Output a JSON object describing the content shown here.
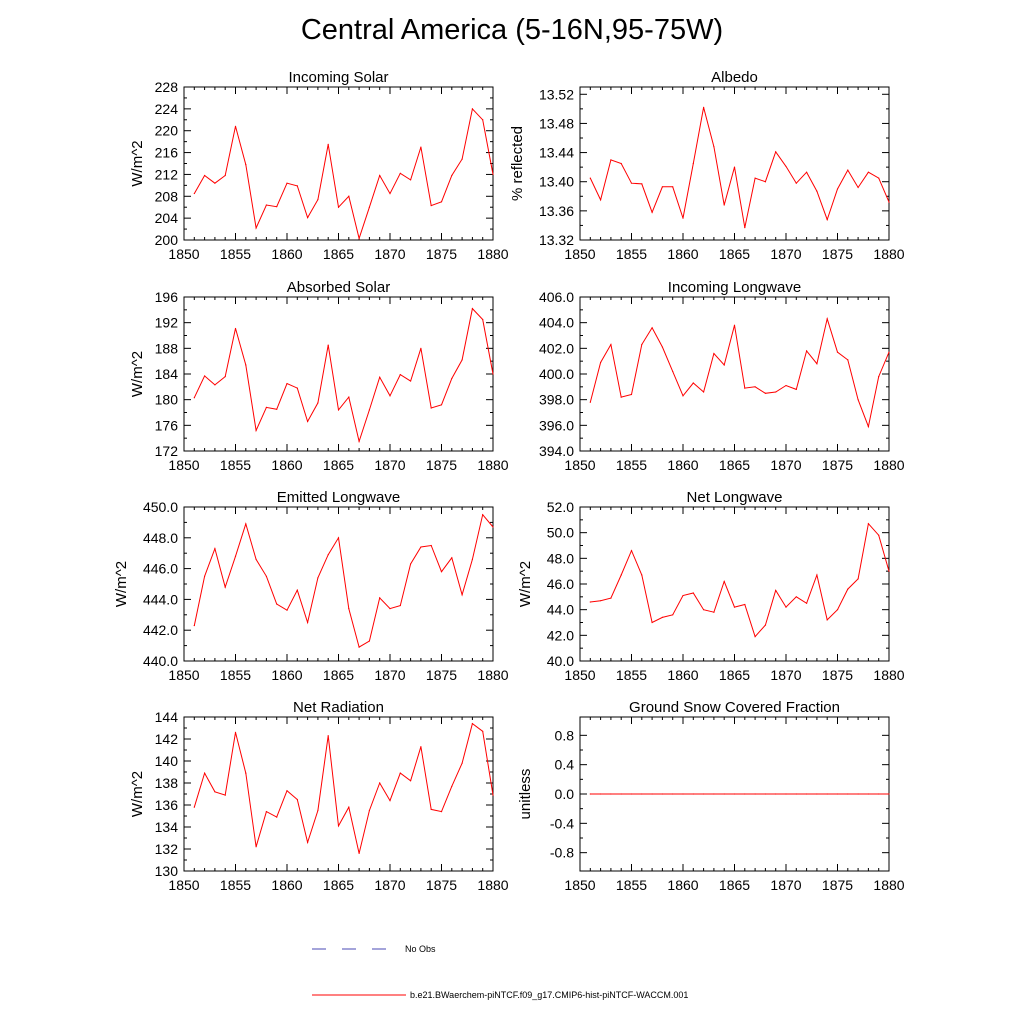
{
  "page": {
    "title": "Central America (5-16N,95-75W)"
  },
  "chart_data": [
    {
      "type": "line",
      "title": "Incoming Solar",
      "ylabel": "W/m^2",
      "xlim": [
        1850,
        1880
      ],
      "ylim": [
        200,
        228
      ],
      "xticks": [
        "1850",
        "1855",
        "1860",
        "1865",
        "1870",
        "1875",
        "1880"
      ],
      "yticks": [
        "200",
        "204",
        "208",
        "212",
        "216",
        "220",
        "224",
        "228"
      ],
      "x": [
        1851,
        1852,
        1853,
        1854,
        1855,
        1856,
        1857,
        1858,
        1859,
        1860,
        1861,
        1862,
        1863,
        1864,
        1865,
        1866,
        1867,
        1868,
        1869,
        1870,
        1871,
        1872,
        1873,
        1874,
        1875,
        1876,
        1877,
        1878,
        1879,
        1880
      ],
      "series": [
        {
          "color": "#ff0000",
          "values": [
            208.5,
            211.8,
            210.4,
            211.8,
            220.8,
            213.8,
            202.2,
            206.4,
            206.1,
            210.4,
            209.9,
            204.1,
            207.4,
            217.5,
            206.0,
            208.0,
            200.3,
            206.0,
            211.8,
            208.5,
            212.2,
            211.0,
            217.0,
            206.3,
            207.0,
            211.8,
            214.8,
            224.0,
            222.0,
            212.0
          ]
        }
      ]
    },
    {
      "type": "line",
      "title": "Albedo",
      "ylabel": "% reflected",
      "xlim": [
        1850,
        1880
      ],
      "ylim": [
        13.32,
        13.53
      ],
      "xticks": [
        "1850",
        "1855",
        "1860",
        "1865",
        "1870",
        "1875",
        "1880"
      ],
      "yticks": [
        "13.32",
        "13.36",
        "13.40",
        "13.44",
        "13.48",
        "13.52"
      ],
      "x": [
        1851,
        1852,
        1853,
        1854,
        1855,
        1856,
        1857,
        1858,
        1859,
        1860,
        1861,
        1862,
        1863,
        1864,
        1865,
        1866,
        1867,
        1868,
        1869,
        1870,
        1871,
        1872,
        1873,
        1874,
        1875,
        1876,
        1877,
        1878,
        1879,
        1880
      ],
      "series": [
        {
          "color": "#ff0000",
          "values": [
            13.405,
            13.375,
            13.43,
            13.425,
            13.398,
            13.397,
            13.358,
            13.393,
            13.393,
            13.35,
            13.425,
            13.502,
            13.448,
            13.368,
            13.42,
            13.337,
            13.405,
            13.4,
            13.441,
            13.421,
            13.398,
            13.413,
            13.387,
            13.348,
            13.39,
            13.416,
            13.392,
            13.413,
            13.405,
            13.372
          ]
        }
      ]
    },
    {
      "type": "line",
      "title": "Absorbed Solar",
      "ylabel": "W/m^2",
      "xlim": [
        1850,
        1880
      ],
      "ylim": [
        172,
        196
      ],
      "xticks": [
        "1850",
        "1855",
        "1860",
        "1865",
        "1870",
        "1875",
        "1880"
      ],
      "yticks": [
        "172",
        "176",
        "180",
        "184",
        "188",
        "192",
        "196"
      ],
      "x": [
        1851,
        1852,
        1853,
        1854,
        1855,
        1856,
        1857,
        1858,
        1859,
        1860,
        1861,
        1862,
        1863,
        1864,
        1865,
        1866,
        1867,
        1868,
        1869,
        1870,
        1871,
        1872,
        1873,
        1874,
        1875,
        1876,
        1877,
        1878,
        1879,
        1880
      ],
      "series": [
        {
          "color": "#ff0000",
          "values": [
            180.3,
            183.7,
            182.3,
            183.6,
            191.1,
            185.4,
            175.2,
            178.8,
            178.5,
            182.5,
            181.8,
            176.6,
            179.5,
            188.5,
            178.4,
            180.4,
            173.5,
            178.4,
            183.5,
            180.6,
            183.9,
            182.9,
            188.0,
            178.7,
            179.2,
            183.3,
            186.2,
            194.2,
            192.5,
            184.0
          ]
        }
      ]
    },
    {
      "type": "line",
      "title": "Incoming Longwave",
      "ylabel": "",
      "xlim": [
        1850,
        1880
      ],
      "ylim": [
        394,
        406
      ],
      "xticks": [
        "1850",
        "1855",
        "1860",
        "1865",
        "1870",
        "1875",
        "1880"
      ],
      "yticks": [
        "394.0",
        "396.0",
        "398.0",
        "400.0",
        "402.0",
        "404.0",
        "406.0"
      ],
      "x": [
        1851,
        1852,
        1853,
        1854,
        1855,
        1856,
        1857,
        1858,
        1859,
        1860,
        1861,
        1862,
        1863,
        1864,
        1865,
        1866,
        1867,
        1868,
        1869,
        1870,
        1871,
        1872,
        1873,
        1874,
        1875,
        1876,
        1877,
        1878,
        1879,
        1880
      ],
      "series": [
        {
          "color": "#ff0000",
          "values": [
            397.8,
            400.9,
            402.3,
            398.2,
            398.4,
            402.3,
            403.6,
            402.1,
            400.2,
            398.3,
            399.3,
            398.6,
            401.6,
            400.7,
            403.8,
            398.9,
            399.0,
            398.5,
            398.6,
            399.1,
            398.8,
            401.8,
            400.8,
            404.3,
            401.7,
            401.1,
            398.0,
            395.9,
            399.8,
            401.7
          ]
        }
      ]
    },
    {
      "type": "line",
      "title": "Emitted Longwave",
      "ylabel": "W/m^2",
      "xlim": [
        1850,
        1880
      ],
      "ylim": [
        440,
        450
      ],
      "xticks": [
        "1850",
        "1855",
        "1860",
        "1865",
        "1870",
        "1875",
        "1880"
      ],
      "yticks": [
        "440.0",
        "442.0",
        "444.0",
        "446.0",
        "448.0",
        "450.0"
      ],
      "x": [
        1851,
        1852,
        1853,
        1854,
        1855,
        1856,
        1857,
        1858,
        1859,
        1860,
        1861,
        1862,
        1863,
        1864,
        1865,
        1866,
        1867,
        1868,
        1869,
        1870,
        1871,
        1872,
        1873,
        1874,
        1875,
        1876,
        1877,
        1878,
        1879,
        1880
      ],
      "series": [
        {
          "color": "#ff0000",
          "values": [
            442.3,
            445.5,
            447.3,
            444.8,
            446.8,
            448.9,
            446.6,
            445.5,
            443.7,
            443.3,
            444.6,
            442.5,
            445.4,
            446.9,
            448.0,
            443.4,
            440.9,
            441.3,
            444.1,
            443.4,
            443.6,
            446.3,
            447.4,
            447.5,
            445.8,
            446.7,
            444.3,
            446.6,
            449.5,
            448.7
          ]
        }
      ]
    },
    {
      "type": "line",
      "title": "Net Longwave",
      "ylabel": "W/m^2",
      "xlim": [
        1850,
        1880
      ],
      "ylim": [
        40,
        52
      ],
      "xticks": [
        "1850",
        "1855",
        "1860",
        "1865",
        "1870",
        "1875",
        "1880"
      ],
      "yticks": [
        "40.0",
        "42.0",
        "44.0",
        "46.0",
        "48.0",
        "50.0",
        "52.0"
      ],
      "x": [
        1851,
        1852,
        1853,
        1854,
        1855,
        1856,
        1857,
        1858,
        1859,
        1860,
        1861,
        1862,
        1863,
        1864,
        1865,
        1866,
        1867,
        1868,
        1869,
        1870,
        1871,
        1872,
        1873,
        1874,
        1875,
        1876,
        1877,
        1878,
        1879,
        1880
      ],
      "series": [
        {
          "color": "#ff0000",
          "values": [
            44.6,
            44.7,
            44.9,
            46.7,
            48.6,
            46.7,
            43.0,
            43.4,
            43.6,
            45.1,
            45.3,
            44.0,
            43.8,
            46.2,
            44.2,
            44.4,
            41.9,
            42.8,
            45.5,
            44.2,
            45.0,
            44.5,
            46.7,
            43.2,
            44.0,
            45.6,
            46.4,
            50.7,
            49.8,
            47.0
          ]
        }
      ]
    },
    {
      "type": "line",
      "title": "Net Radiation",
      "ylabel": "W/m^2",
      "xlim": [
        1850,
        1880
      ],
      "ylim": [
        130,
        144
      ],
      "xticks": [
        "1850",
        "1855",
        "1860",
        "1865",
        "1870",
        "1875",
        "1880"
      ],
      "yticks": [
        "130",
        "132",
        "134",
        "136",
        "138",
        "140",
        "142",
        "144"
      ],
      "x": [
        1851,
        1852,
        1853,
        1854,
        1855,
        1856,
        1857,
        1858,
        1859,
        1860,
        1861,
        1862,
        1863,
        1864,
        1865,
        1866,
        1867,
        1868,
        1869,
        1870,
        1871,
        1872,
        1873,
        1874,
        1875,
        1876,
        1877,
        1878,
        1879,
        1880
      ],
      "series": [
        {
          "color": "#ff0000",
          "values": [
            135.8,
            138.9,
            137.2,
            136.9,
            142.6,
            138.9,
            132.2,
            135.4,
            134.9,
            137.3,
            136.5,
            132.6,
            135.5,
            142.3,
            134.1,
            135.8,
            131.6,
            135.5,
            138.0,
            136.4,
            138.9,
            138.2,
            141.3,
            135.6,
            135.4,
            137.7,
            139.8,
            143.4,
            142.7,
            136.9
          ]
        }
      ]
    },
    {
      "type": "line",
      "title": "Ground Snow Covered Fraction",
      "ylabel": "unitless",
      "xlim": [
        1850,
        1880
      ],
      "ylim": [
        -1.05,
        1.05
      ],
      "xticks": [
        "1850",
        "1855",
        "1860",
        "1865",
        "1870",
        "1875",
        "1880"
      ],
      "yticks": [
        "-0.8",
        "-0.4",
        "0.0",
        "0.4",
        "0.8"
      ],
      "x": [
        1851,
        1852,
        1853,
        1854,
        1855,
        1856,
        1857,
        1858,
        1859,
        1860,
        1861,
        1862,
        1863,
        1864,
        1865,
        1866,
        1867,
        1868,
        1869,
        1870,
        1871,
        1872,
        1873,
        1874,
        1875,
        1876,
        1877,
        1878,
        1879,
        1880
      ],
      "series": [
        {
          "color": "#ff0000",
          "values": [
            0,
            0,
            0,
            0,
            0,
            0,
            0,
            0,
            0,
            0,
            0,
            0,
            0,
            0,
            0,
            0,
            0,
            0,
            0,
            0,
            0,
            0,
            0,
            0,
            0,
            0,
            0,
            0,
            0,
            0
          ]
        }
      ]
    }
  ],
  "legend": {
    "items": [
      {
        "label": "No Obs",
        "color": "#4a4ab4",
        "style": "dashed"
      },
      {
        "label": "b.e21.BWaerchem-piNTCF.f09_g17.CMIP6-hist-piNTCF-WACCM.001",
        "color": "#ff0000",
        "style": "solid"
      }
    ]
  }
}
